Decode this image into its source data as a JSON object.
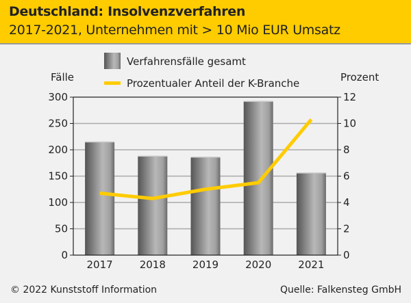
{
  "header": {
    "title": "Deutschland: Insolvenzverfahren",
    "subtitle": "2017-2021, Unternehmen mit > 10 Mio EUR Umsatz"
  },
  "footer": {
    "copyright": "© 2022 Kunststoff Information",
    "source": "Quelle: Falkensteg GmbH"
  },
  "colors": {
    "header_bg": "#ffcc00",
    "line": "#ffcc00",
    "bar_dark": "#5a5a5a",
    "bar_light": "#b5b5b5",
    "background": "#f0f1f0"
  },
  "chart_data": {
    "type": "bar",
    "title": "Deutschland: Insolvenzverfahren",
    "subtitle": "2017-2021, Unternehmen mit > 10 Mio EUR Umsatz",
    "categories": [
      "2017",
      "2018",
      "2019",
      "2020",
      "2021"
    ],
    "series": [
      {
        "name": "Verfahrensfälle gesamt",
        "type": "bar",
        "axis": "left",
        "values": [
          215,
          188,
          186,
          292,
          156
        ]
      },
      {
        "name": "Prozentualer Anteil der K-Branche",
        "type": "line",
        "axis": "right",
        "values": [
          4.7,
          4.3,
          5.0,
          5.5,
          10.3
        ]
      }
    ],
    "ylabel": "Fälle",
    "y2label": "Prozent",
    "ylim": [
      0,
      300
    ],
    "y2lim": [
      0,
      12
    ],
    "yticks": [
      0,
      50,
      100,
      150,
      200,
      250,
      300
    ],
    "y2ticks": [
      0,
      2,
      4,
      6,
      8,
      10,
      12
    ],
    "grid": true,
    "legend": "top-center"
  }
}
